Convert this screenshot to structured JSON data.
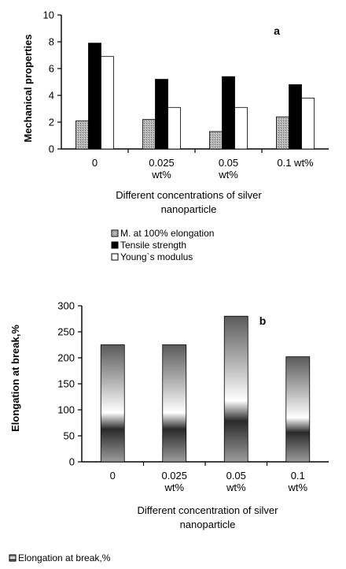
{
  "chart_data": [
    {
      "type": "bar",
      "panel_label": "a",
      "categories": [
        "0",
        "0.025|wt%",
        "0.05|wt%",
        "0.1 wt%"
      ],
      "series": [
        {
          "name": "M. at 100% elongation",
          "values": [
            2.1,
            2.2,
            1.3,
            2.4
          ],
          "color": "#a9a9a9"
        },
        {
          "name": "Tensile strength",
          "values": [
            7.9,
            5.2,
            5.4,
            4.8
          ],
          "color": "#000000"
        },
        {
          "name": "Young`s modulus",
          "values": [
            6.9,
            3.1,
            3.1,
            3.8
          ],
          "color": "#ffffff"
        }
      ],
      "ylabel": "Mechanical properties",
      "xlabel_lines": [
        "Different concentrations of silver",
        "nanoparticle"
      ],
      "ylim": [
        0,
        10
      ],
      "yticks": [
        0,
        2,
        4,
        6,
        8,
        10
      ],
      "legend": "bottom"
    },
    {
      "type": "bar",
      "panel_label": "b",
      "categories": [
        "0",
        "0.025|wt%",
        "0.05|wt%",
        "0.1|wt%"
      ],
      "series": [
        {
          "name": "Elongation at break,%",
          "values": [
            225,
            225,
            280,
            202
          ],
          "color": "#777777"
        }
      ],
      "ylabel": "Elongation  at break,%",
      "xlabel_lines": [
        "Different concentration of silver",
        "nanoparticle"
      ],
      "ylim": [
        0,
        300
      ],
      "yticks": [
        0,
        50,
        100,
        150,
        200,
        250,
        300
      ],
      "legend": "bottom"
    }
  ]
}
